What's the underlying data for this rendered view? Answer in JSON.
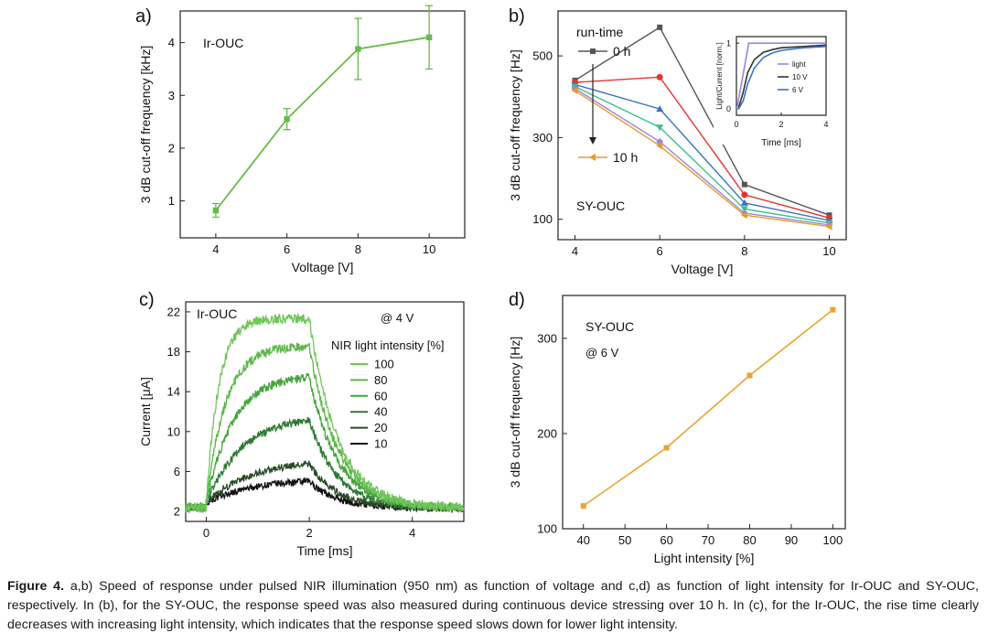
{
  "chart_data": [
    {
      "panel": "a",
      "panel_label": "a)",
      "type": "line",
      "annotation": "Ir-OUC",
      "xlabel": "Voltage [V]",
      "ylabel": "3 dB cut-off frequency [kHz]",
      "xlim": [
        3,
        11
      ],
      "ylim": [
        0.3,
        4.6
      ],
      "xticks": [
        4,
        6,
        8,
        10
      ],
      "yticks": [
        1,
        2,
        3,
        4
      ],
      "color": "#66bb4a",
      "x": [
        4,
        6,
        8,
        10
      ],
      "y": [
        0.82,
        2.55,
        3.88,
        4.1
      ],
      "yerr": [
        0.13,
        0.2,
        0.58,
        0.6
      ]
    },
    {
      "panel": "b",
      "panel_label": "b)",
      "type": "line",
      "annotation": "SY-OUC",
      "legend_title": "run-time",
      "legend_start": "0 h",
      "legend_end": "10 h",
      "xlabel": "Voltage [V]",
      "ylabel": "3 dB cut-off frequency [Hz]",
      "xlim": [
        3.6,
        10.4
      ],
      "ylim": [
        50,
        610
      ],
      "xticks": [
        4,
        6,
        8,
        10
      ],
      "yticks": [
        100,
        300,
        500
      ],
      "x": [
        4,
        6,
        8,
        10
      ],
      "series": [
        {
          "name": "0 h",
          "color": "#555555",
          "marker": "square",
          "values": [
            440,
            570,
            185,
            110
          ]
        },
        {
          "name": "",
          "color": "#e8322e",
          "marker": "circle",
          "values": [
            435,
            448,
            160,
            103
          ]
        },
        {
          "name": "",
          "color": "#3b72c4",
          "marker": "triangle-up",
          "values": [
            430,
            370,
            140,
            97
          ]
        },
        {
          "name": "",
          "color": "#3cbf8f",
          "marker": "triangle-down",
          "values": [
            425,
            325,
            125,
            91
          ]
        },
        {
          "name": "",
          "color": "#9b86d4",
          "marker": "diamond",
          "values": [
            420,
            290,
            115,
            86
          ]
        },
        {
          "name": "10 h",
          "color": "#e89a2e",
          "marker": "triangle-left",
          "values": [
            415,
            280,
            110,
            82
          ]
        }
      ]
    },
    {
      "panel": "b-inset",
      "type": "line",
      "xlabel": "Time [ms]",
      "ylabel": "Light/Current [norm.]",
      "xlim": [
        0,
        4
      ],
      "ylim": [
        -0.1,
        1.1
      ],
      "xticks": [
        0,
        2,
        4
      ],
      "yticks": [
        0,
        1
      ],
      "series": [
        {
          "name": "light",
          "color": "#9b86d4",
          "x": [
            0,
            0.02,
            0.55,
            0.6,
            4
          ],
          "values": [
            0,
            0,
            1,
            1,
            1
          ]
        },
        {
          "name": "10 V",
          "color": "#333333",
          "x": [
            0.1,
            0.3,
            0.5,
            0.8,
            1.2,
            1.6,
            2,
            3,
            4
          ],
          "values": [
            0.02,
            0.25,
            0.55,
            0.75,
            0.86,
            0.9,
            0.93,
            0.95,
            0.97
          ]
        },
        {
          "name": "6 V",
          "color": "#3b72c4",
          "x": [
            0.1,
            0.3,
            0.5,
            0.8,
            1.2,
            1.6,
            2,
            3,
            4
          ],
          "values": [
            0,
            0.12,
            0.38,
            0.62,
            0.78,
            0.85,
            0.89,
            0.93,
            0.95
          ]
        }
      ]
    },
    {
      "panel": "c",
      "panel_label": "c)",
      "type": "line",
      "annotation": "Ir-OUC",
      "annotation2": "@ 4 V",
      "legend_title": "NIR light intensity [%]",
      "xlabel": "Time [ms]",
      "ylabel": "Current [μA]",
      "xlim": [
        -0.4,
        5
      ],
      "ylim": [
        1,
        23
      ],
      "xticks": [
        0,
        2,
        4
      ],
      "yticks": [
        2,
        6,
        10,
        14,
        18,
        22
      ],
      "series": [
        {
          "name": "100",
          "color": "#70c65a",
          "plateau": 21.5
        },
        {
          "name": "80",
          "color": "#5cb84a",
          "plateau": 18.8
        },
        {
          "name": "60",
          "color": "#45a53d",
          "plateau": 15.9
        },
        {
          "name": "40",
          "color": "#2f7a33",
          "plateau": 11.9
        },
        {
          "name": "20",
          "color": "#2a4b2a",
          "plateau": 7.5
        },
        {
          "name": "10",
          "color": "#111111",
          "plateau": 5.6
        }
      ]
    },
    {
      "panel": "d",
      "panel_label": "d)",
      "type": "line",
      "annotation": "SY-OUC",
      "annotation2": "@ 6 V",
      "xlabel": "Light intensity [%]",
      "ylabel": "3 dB cut-off frequency [Hz]",
      "xlim": [
        35,
        103
      ],
      "ylim": [
        100,
        345
      ],
      "xticks": [
        40,
        50,
        60,
        70,
        80,
        90,
        100
      ],
      "yticks": [
        100,
        200,
        300
      ],
      "color": "#e8a530",
      "x": [
        40,
        60,
        80,
        100
      ],
      "y": [
        124,
        185,
        261,
        330
      ]
    }
  ],
  "caption": {
    "label": "Figure 4.",
    "text": "a,b) Speed of response under pulsed NIR illumination (950 nm) as function of voltage and c,d) as function of light intensity for Ir-OUC and SY-OUC, respectively. In (b), for the SY-OUC, the response speed was also measured during continuous device stressing over 10 h. In (c), for the Ir-OUC, the rise time clearly decreases with increasing light intensity, which indicates that the response speed slows down for lower light intensity."
  }
}
